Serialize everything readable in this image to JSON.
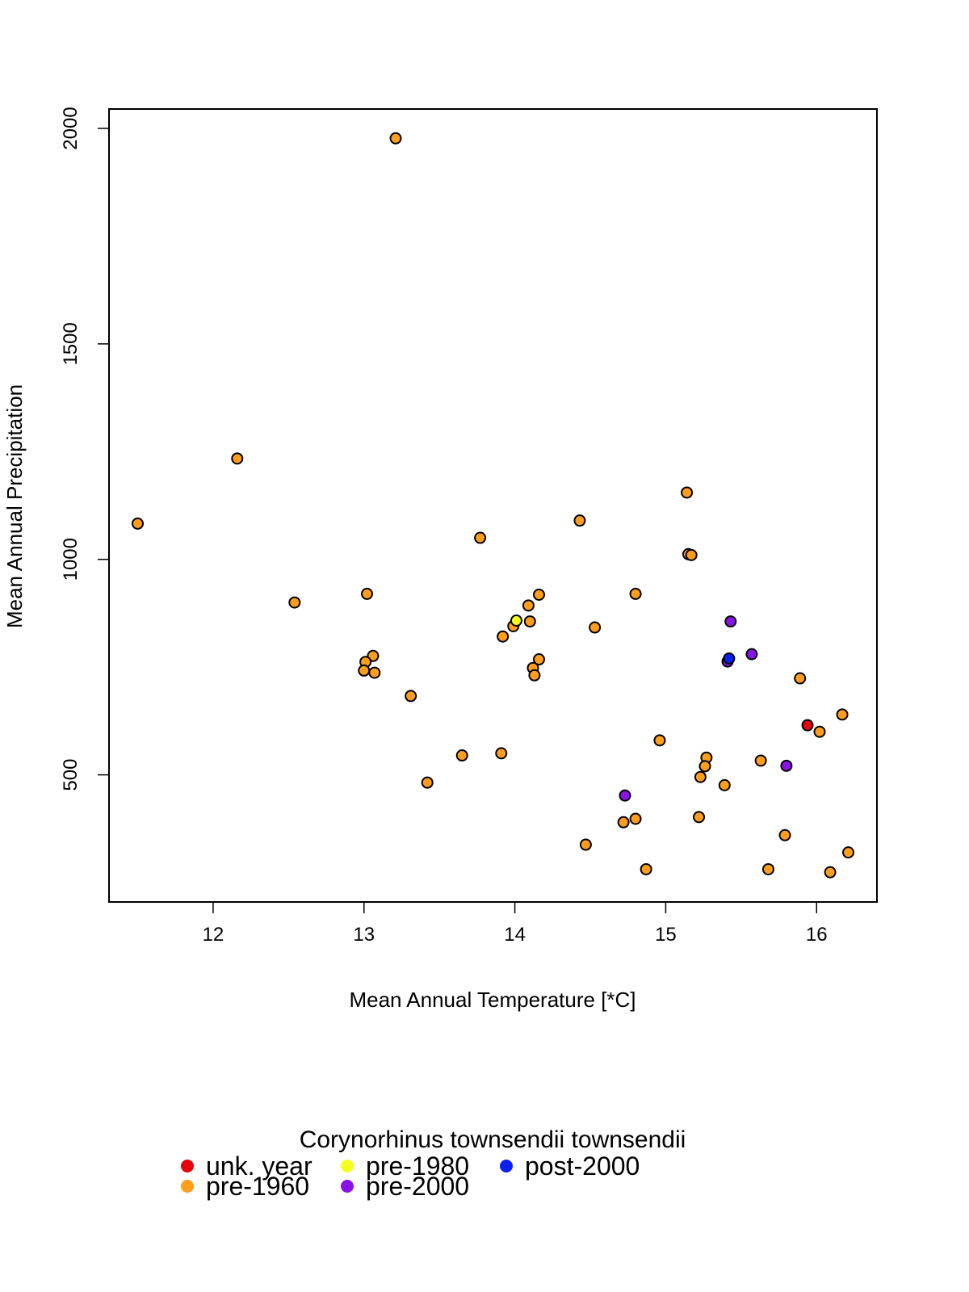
{
  "chart_data": {
    "type": "scatter",
    "title": "",
    "xlabel": "Mean Annual Temperature [*C]",
    "ylabel": "Mean Annual Precipitation",
    "xlim": [
      11.31,
      16.4
    ],
    "ylim": [
      205,
      2045
    ],
    "xticks": [
      "12",
      "13",
      "14",
      "15",
      "16"
    ],
    "yticks": [
      "500",
      "1000",
      "1500",
      "2000"
    ],
    "grid": false,
    "legend": {
      "title": "Corynorhinus townsendii townsendii",
      "placement": "bottom"
    },
    "series": [
      {
        "name": "unk. year",
        "color": "#e8000b",
        "points": [
          [
            15.94,
            615
          ]
        ]
      },
      {
        "name": "pre-1960",
        "color": "#ff9d1c",
        "points": [
          [
            13.21,
            1977
          ],
          [
            12.16,
            1234
          ],
          [
            11.5,
            1083
          ],
          [
            12.54,
            900
          ],
          [
            13.77,
            1050
          ],
          [
            14.43,
            1090
          ],
          [
            15.14,
            1155
          ],
          [
            15.15,
            1012
          ],
          [
            15.17,
            1010
          ],
          [
            13.02,
            920
          ],
          [
            14.16,
            918
          ],
          [
            14.8,
            920
          ],
          [
            14.09,
            893
          ],
          [
            14.1,
            856
          ],
          [
            13.99,
            845
          ],
          [
            14.53,
            842
          ],
          [
            13.92,
            821
          ],
          [
            13.06,
            776
          ],
          [
            13.01,
            762
          ],
          [
            14.16,
            768
          ],
          [
            13.0,
            742
          ],
          [
            13.07,
            737
          ],
          [
            14.12,
            748
          ],
          [
            14.13,
            731
          ],
          [
            15.89,
            724
          ],
          [
            13.31,
            683
          ],
          [
            16.17,
            640
          ],
          [
            16.02,
            600
          ],
          [
            14.96,
            580
          ],
          [
            13.65,
            545
          ],
          [
            13.91,
            550
          ],
          [
            15.27,
            540
          ],
          [
            15.26,
            520
          ],
          [
            15.63,
            533
          ],
          [
            15.23,
            495
          ],
          [
            15.39,
            476
          ],
          [
            13.42,
            482
          ],
          [
            15.22,
            402
          ],
          [
            14.8,
            398
          ],
          [
            14.72,
            390
          ],
          [
            15.79,
            360
          ],
          [
            14.47,
            338
          ],
          [
            16.21,
            320
          ],
          [
            14.87,
            281
          ],
          [
            15.68,
            281
          ],
          [
            16.09,
            274
          ]
        ]
      },
      {
        "name": "pre-1980",
        "color": "#f7ff1c",
        "points": [
          [
            14.01,
            858
          ]
        ]
      },
      {
        "name": "pre-2000",
        "color": "#8b12e6",
        "points": [
          [
            15.43,
            856
          ],
          [
            15.57,
            780
          ],
          [
            15.41,
            763
          ],
          [
            15.8,
            521
          ],
          [
            14.73,
            452
          ]
        ]
      },
      {
        "name": "post-2000",
        "color": "#0a1ff2",
        "points": [
          [
            15.42,
            770
          ]
        ]
      }
    ]
  }
}
